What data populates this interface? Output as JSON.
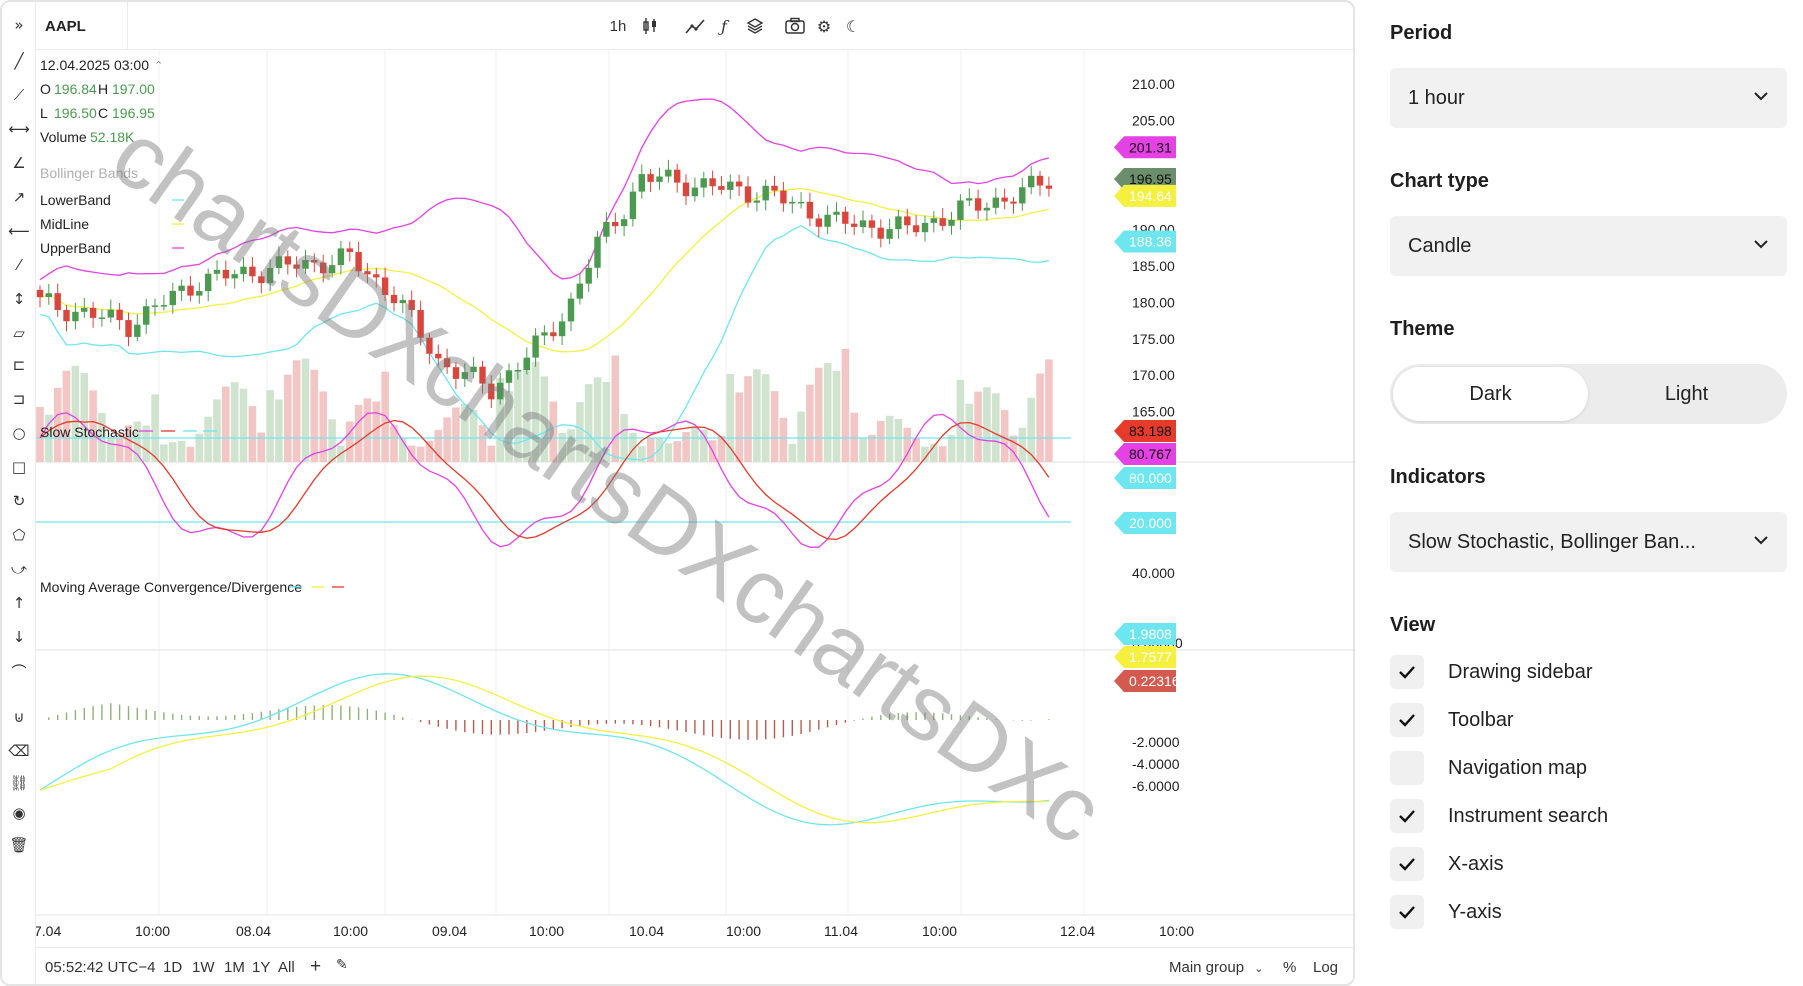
{
  "chart_header": {
    "symbol": "AAPL",
    "datetime": "12.04.2025 03:00",
    "ohlc": {
      "o_label": "O",
      "o": "196.84",
      "h_label": "H",
      "h": "197.00",
      "l_label": "L",
      "l": "196.50",
      "c_label": "C",
      "c": "196.95"
    },
    "volume_label": "Volume",
    "volume": "52.18K",
    "bollinger_title": "Bollinger Bands",
    "bollinger_lines": [
      "LowerBand",
      "MidLine",
      "UpperBand"
    ],
    "stochastic_title": "Slow Stochastic",
    "macd_title": "Moving Average Convergence/Divergence"
  },
  "toolbar": {
    "timeframe": "1h",
    "icons": [
      "candle-type-icon",
      "drawing-icon",
      "indicator-icon",
      "layers-icon",
      "camera-icon",
      "gear-icon",
      "moon-icon"
    ]
  },
  "watermark": "chartsDXchartsDXchartsDXc",
  "chart_data": [
    {
      "type": "candlestick",
      "title": "AAPL",
      "series": [
        {
          "name": "UpperBand",
          "color": "#e442e4"
        },
        {
          "name": "MidLine",
          "color": "#f5f040"
        },
        {
          "name": "LowerBand",
          "color": "#6ee6f0"
        }
      ],
      "ylim": [
        160,
        212
      ],
      "y_ticks": [
        "210.00",
        "205.00",
        "190.00",
        "185.00",
        "180.00",
        "175.00",
        "170.00",
        "165.00"
      ],
      "price_labels": [
        {
          "value": "201.31",
          "color": "#e442e4"
        },
        {
          "value": "196.95",
          "color": "#6a8f6a"
        },
        {
          "value": "194.64",
          "color": "#f5f040"
        },
        {
          "value": "188.36",
          "color": "#6ee6f0"
        }
      ],
      "x_ticks": [
        "7.04",
        "10:00",
        "08.04",
        "10:00",
        "09.04",
        "10:00",
        "10.04",
        "10:00",
        "11.04",
        "10:00",
        "12.04",
        "10:00"
      ]
    },
    {
      "type": "line",
      "title": "Slow Stochastic",
      "y_ticks": [
        "40.000",
        "0.00000"
      ],
      "levels": [
        80,
        20
      ],
      "price_labels": [
        {
          "value": "83.198",
          "color": "#e63a2a"
        },
        {
          "value": "80.767",
          "color": "#e442e4"
        },
        {
          "value": "80.000",
          "color": "#6ee6f0"
        },
        {
          "value": "20.000",
          "color": "#6ee6f0"
        }
      ]
    },
    {
      "type": "line",
      "title": "Moving Average Convergence/Divergence",
      "y_ticks": [
        "4.0000",
        "-2.0000",
        "-4.0000",
        "-6.0000"
      ],
      "price_labels": [
        {
          "value": "1.9808",
          "color": "#6ee6f0"
        },
        {
          "value": "1.7577",
          "color": "#f5f040"
        },
        {
          "value": "0.22316",
          "color": "#d45a50"
        }
      ]
    }
  ],
  "bottom_bar": {
    "time": "05:52:42 UTC−4",
    "ranges": [
      "1D",
      "1W",
      "1M",
      "1Y",
      "All"
    ],
    "group": "Main group",
    "percent": "%",
    "log": "Log"
  },
  "panel": {
    "period_title": "Period",
    "period_value": "1 hour",
    "chart_type_title": "Chart type",
    "chart_type_value": "Candle",
    "theme_title": "Theme",
    "theme_options": [
      "Dark",
      "Light"
    ],
    "theme_selected": "Dark",
    "indicators_title": "Indicators",
    "indicators_value": "Slow Stochastic, Bollinger Ban...",
    "view_title": "View",
    "view_items": [
      {
        "label": "Drawing sidebar",
        "checked": true
      },
      {
        "label": "Toolbar",
        "checked": true
      },
      {
        "label": "Navigation map",
        "checked": false
      },
      {
        "label": "Instrument search",
        "checked": true
      },
      {
        "label": "X-axis",
        "checked": true
      },
      {
        "label": "Y-axis",
        "checked": true
      }
    ]
  }
}
